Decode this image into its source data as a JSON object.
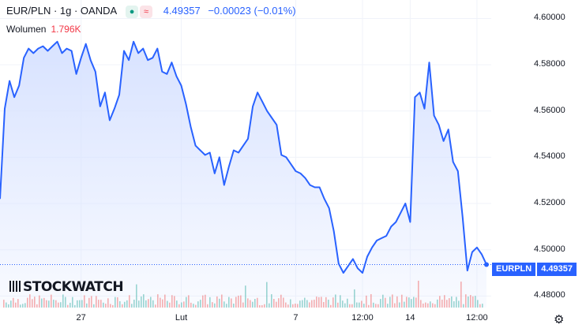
{
  "header": {
    "symbol": "EUR/PLN · 1g · OANDA",
    "status_icons": [
      "dot-icon",
      "wave-icon"
    ],
    "last_price": "4.49357",
    "change": "−0.00023 (−0.01%)"
  },
  "volume": {
    "label": "Wolumen",
    "value": "1.796K"
  },
  "price_tag": {
    "symbol": "EURPLN",
    "value": "4.49357"
  },
  "logo_text": "STOCKWATCH",
  "colors": {
    "line": "#2962ff",
    "area": "#d6e1ff",
    "vol_up": "#26a69a",
    "vol_down": "#ef5350",
    "text_up": "#2962ff",
    "text_down": "#f23645"
  },
  "chart_data": {
    "type": "area",
    "title": "",
    "xlabel": "",
    "ylabel": "",
    "ylim": [
      4.475,
      4.608
    ],
    "yticks": [
      "4.60000",
      "4.58000",
      "4.56000",
      "4.54000",
      "4.52000",
      "4.50000",
      "4.48000"
    ],
    "ytick_values": [
      4.6,
      4.58,
      4.56,
      4.54,
      4.52,
      4.5,
      4.48
    ],
    "xticks": [
      {
        "label": "27",
        "x": 17
      },
      {
        "label": "Lut",
        "x": 38
      },
      {
        "label": "7",
        "x": 62
      },
      {
        "label": "12:00",
        "x": 76
      },
      {
        "label": "14",
        "x": 86
      },
      {
        "label": "12:00",
        "x": 100
      }
    ],
    "xlim": [
      0,
      102
    ],
    "grid": true,
    "series": [
      {
        "x": [
          0,
          1,
          2,
          3,
          4,
          5,
          6,
          7,
          8,
          9,
          10,
          11,
          12,
          13,
          14,
          15,
          16,
          17,
          18,
          19,
          20,
          21,
          22,
          23,
          24,
          25,
          26,
          27,
          28,
          29,
          30,
          31,
          32,
          33,
          34,
          35,
          36,
          37,
          38,
          39,
          40,
          41,
          42,
          43,
          44,
          45,
          46,
          47,
          48,
          49,
          50,
          51,
          52,
          53,
          54,
          55,
          56,
          57,
          58,
          59,
          60,
          61,
          62,
          63,
          64,
          65,
          66,
          67,
          68,
          69,
          70,
          71,
          72,
          73,
          74,
          75,
          76,
          77,
          78,
          79,
          80,
          81,
          82,
          83,
          84,
          85,
          86,
          87,
          88,
          89,
          90,
          91,
          92,
          93,
          94,
          95,
          96,
          97,
          98,
          99,
          100,
          101,
          102
        ],
        "y": [
          4.522,
          4.561,
          4.573,
          4.566,
          4.571,
          4.583,
          4.587,
          4.585,
          4.587,
          4.588,
          4.586,
          4.588,
          4.59,
          4.585,
          4.587,
          4.586,
          4.576,
          4.583,
          4.589,
          4.582,
          4.577,
          4.562,
          4.568,
          4.556,
          4.561,
          4.567,
          4.586,
          4.582,
          4.59,
          4.585,
          4.587,
          4.582,
          4.583,
          4.587,
          4.577,
          4.576,
          4.581,
          4.575,
          4.571,
          4.563,
          4.553,
          4.545,
          4.543,
          4.541,
          4.542,
          4.533,
          4.54,
          4.528,
          4.536,
          4.543,
          4.542,
          4.545,
          4.548,
          4.562,
          4.568,
          4.564,
          4.56,
          4.557,
          4.554,
          4.541,
          4.54,
          4.537,
          4.534,
          4.533,
          4.531,
          4.528,
          4.527,
          4.527,
          4.522,
          4.518,
          4.508,
          4.494,
          4.49,
          4.493,
          4.496,
          4.492,
          4.49,
          4.497,
          4.501,
          4.504,
          4.505,
          4.506,
          4.51,
          4.512,
          4.516,
          4.52,
          4.512,
          4.566,
          4.568,
          4.561,
          4.581,
          4.558,
          4.554,
          4.547,
          4.552,
          4.538,
          4.534,
          4.514,
          4.491,
          4.499,
          4.501,
          4.498,
          4.4936
        ]
      }
    ]
  }
}
